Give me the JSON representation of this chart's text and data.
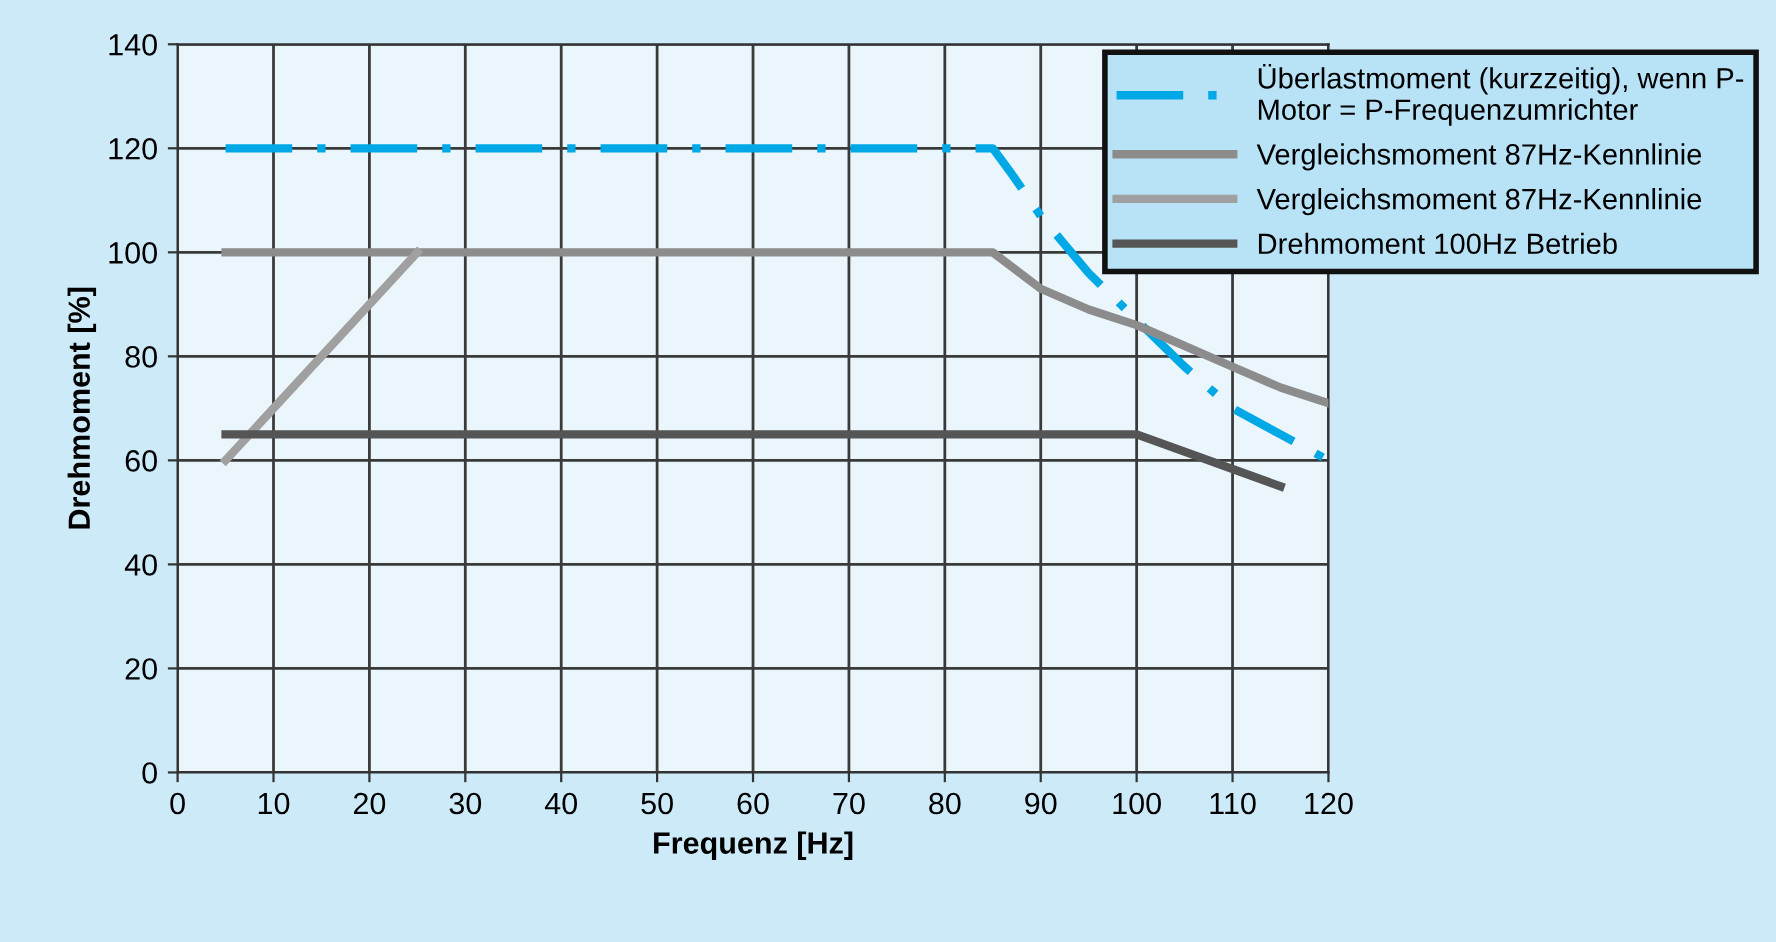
{
  "chart_data": {
    "type": "line",
    "xlabel": "Frequenz [Hz]",
    "ylabel": "Drehmoment [%]",
    "xlim": [
      0,
      120
    ],
    "xticks": [
      0,
      10,
      20,
      30,
      40,
      50,
      60,
      70,
      80,
      90,
      100,
      110,
      120
    ],
    "ylim": [
      0,
      140
    ],
    "yticks": [
      0,
      20,
      40,
      60,
      80,
      100,
      120,
      140
    ],
    "grid": true,
    "legend": "top right",
    "marker": "none",
    "series": [
      {
        "name": "Überlastmoment (kurzzeitig), wenn P-\nMotor = P-Frequenzumrichter",
        "color": "#00a8e6",
        "line_style": "dashdot",
        "x": [
          5,
          85,
          87,
          90,
          95,
          100,
          105,
          110,
          115,
          120
        ],
        "values": [
          120,
          120,
          115,
          107,
          96,
          87,
          78,
          70,
          65,
          60
        ]
      },
      {
        "name": "Vergleichsmoment 87Hz-Kennlinie",
        "color": "#8c8c8c",
        "line_style": "solid",
        "x": [
          5,
          85,
          90,
          95,
          100,
          105,
          110,
          115,
          120
        ],
        "values": [
          100,
          100,
          93,
          89,
          86,
          82,
          78,
          74,
          71
        ]
      },
      {
        "name": "Vergleichsmoment 87Hz-Kennlinie",
        "color": "#a0a0a0",
        "line_style": "solid",
        "x": [
          5,
          25
        ],
        "values": [
          60,
          100
        ]
      },
      {
        "name": "Drehmoment 100Hz Betrieb",
        "color": "#555555",
        "line_style": "solid",
        "x": [
          5,
          100,
          115
        ],
        "values": [
          65,
          65,
          55
        ]
      }
    ]
  }
}
